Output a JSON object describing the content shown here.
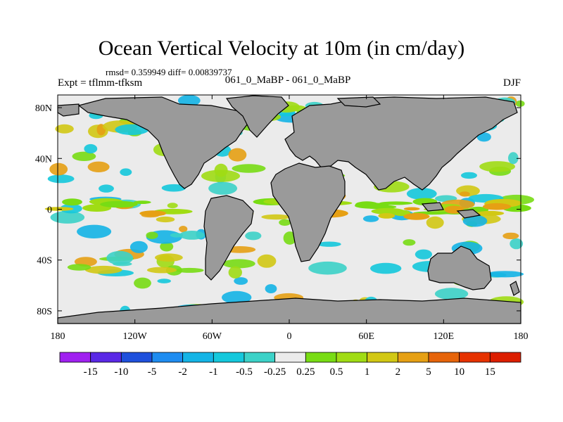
{
  "chart_data": {
    "type": "heatmap",
    "title": "Ocean Vertical Velocity at 10m (in cm/day)",
    "stats_text": "rmsd= 0.359949 diff= 0.00839737",
    "left_label": "Expt = tflmm-tfksm",
    "center_label": "061_0_MaBP - 061_0_MaBP",
    "right_label": "DJF",
    "x_ticks": [
      "180",
      "120W",
      "60W",
      "0",
      "60E",
      "120E",
      "180"
    ],
    "y_ticks": [
      "80N",
      "40N",
      "0",
      "40S",
      "80S"
    ],
    "colorbar": {
      "labels": [
        "-15",
        "-10",
        "-5",
        "-2",
        "-1",
        "-0.5",
        "-0.25",
        "0.25",
        "0.5",
        "1",
        "2",
        "5",
        "10",
        "15"
      ],
      "colors": [
        "#a020f0",
        "#5a28e6",
        "#1e50dc",
        "#1e8cf0",
        "#14b4e6",
        "#14c8dc",
        "#3cd2c8",
        "#ebebeb",
        "#78dc14",
        "#a0dc14",
        "#d2c814",
        "#e6a014",
        "#e6640a",
        "#e63200",
        "#dc1e00"
      ]
    },
    "land_color": "#9a9a9a",
    "ocean_background": "#ebebeb"
  }
}
